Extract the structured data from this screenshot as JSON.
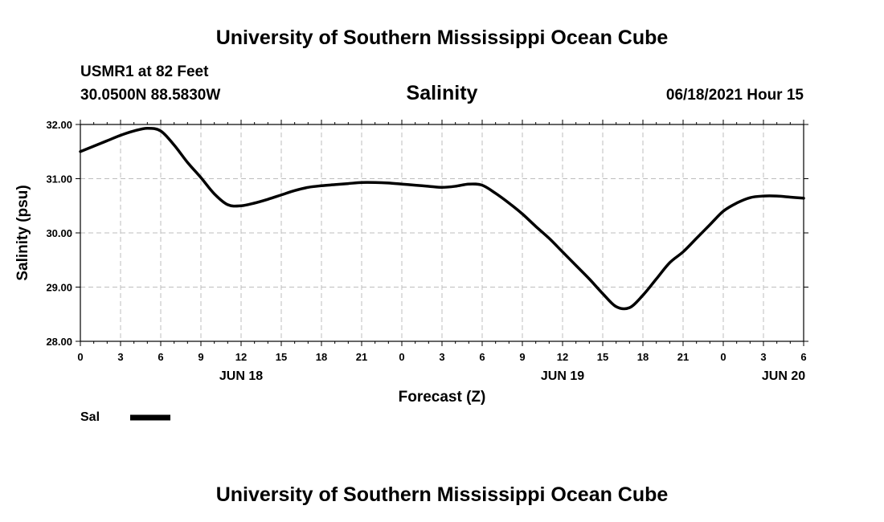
{
  "header": {
    "title": "University of Southern Mississippi Ocean Cube",
    "station": "USMR1 at 82 Feet",
    "coordinates": "30.0500N  88.5830W",
    "variable": "Salinity",
    "timestamp": "06/18/2021 Hour 15"
  },
  "footer": {
    "title": "University of Southern Mississippi Ocean Cube"
  },
  "chart_data": {
    "type": "line",
    "title": "Salinity",
    "xlabel": "Forecast (Z)",
    "ylabel": "Salinity (psu)",
    "ylim": [
      28.0,
      32.0
    ],
    "xlim_hours": [
      0,
      54
    ],
    "grid": true,
    "legend_position": "bottom-left",
    "y_ticks": [
      "32.00",
      "31.00",
      "30.00",
      "29.00",
      "28.00"
    ],
    "y_tick_values": [
      32,
      31,
      30,
      29,
      28
    ],
    "x_ticks": [
      "0",
      "3",
      "6",
      "9",
      "12",
      "15",
      "18",
      "21",
      "0",
      "3",
      "6",
      "9",
      "12",
      "15",
      "18",
      "21",
      "0",
      "3",
      "6"
    ],
    "date_labels": [
      {
        "label": "JUN 18",
        "hour": 12
      },
      {
        "label": "JUN 19",
        "hour": 36
      },
      {
        "label": "JUN 20",
        "hour": 52.5
      }
    ],
    "series": [
      {
        "name": "Sal",
        "color": "#000000",
        "x": [
          0,
          1,
          2,
          3,
          4,
          5,
          6,
          7,
          8,
          9,
          10,
          11,
          12,
          13,
          14,
          15,
          16,
          17,
          18,
          19,
          20,
          21,
          22,
          23,
          24,
          25,
          26,
          27,
          28,
          29,
          30,
          31,
          32,
          33,
          34,
          35,
          36,
          37,
          38,
          39,
          40,
          41,
          42,
          43,
          44,
          45,
          46,
          47,
          48,
          49,
          50,
          51,
          52,
          53,
          54
        ],
        "values": [
          31.5,
          31.6,
          31.7,
          31.8,
          31.88,
          31.93,
          31.88,
          31.62,
          31.3,
          31.02,
          30.72,
          30.52,
          30.5,
          30.55,
          30.62,
          30.7,
          30.78,
          30.84,
          30.87,
          30.89,
          30.91,
          30.93,
          30.93,
          30.92,
          30.9,
          30.88,
          30.86,
          30.84,
          30.86,
          30.9,
          30.88,
          30.73,
          30.55,
          30.35,
          30.12,
          29.9,
          29.65,
          29.4,
          29.15,
          28.88,
          28.64,
          28.62,
          28.85,
          29.15,
          29.45,
          29.65,
          29.9,
          30.15,
          30.4,
          30.55,
          30.65,
          30.68,
          30.68,
          30.66,
          30.64
        ]
      }
    ]
  }
}
